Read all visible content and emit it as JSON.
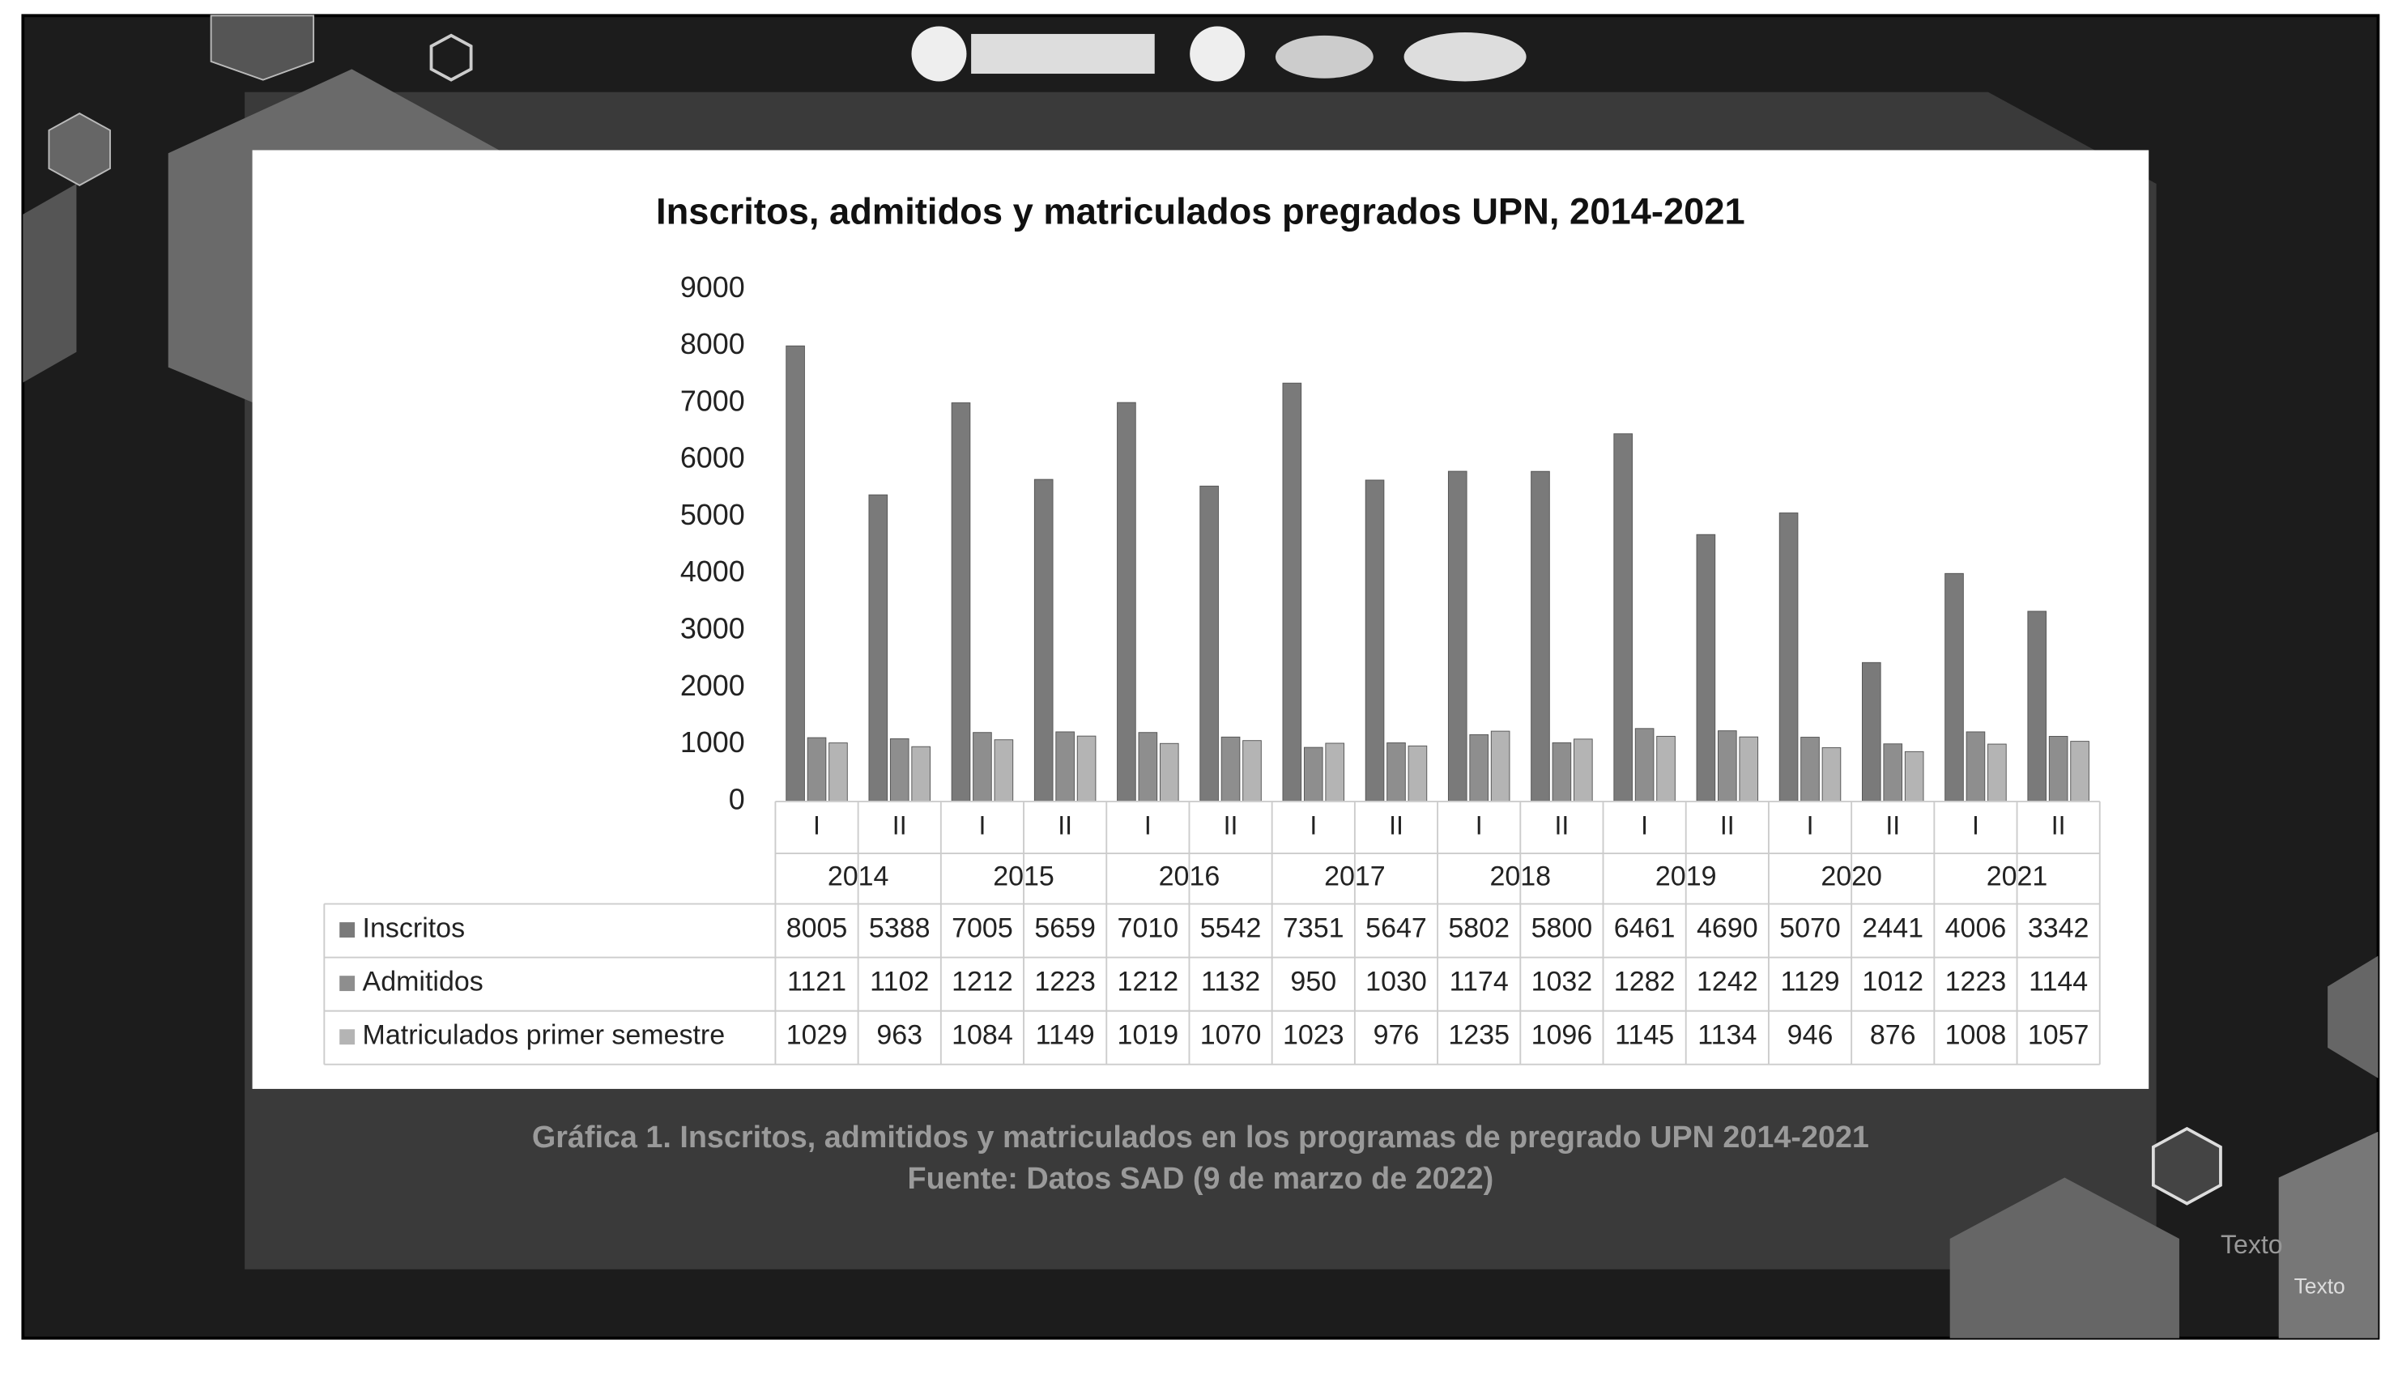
{
  "chart_data": {
    "type": "bar",
    "title": "Inscritos, admitidos y matriculados pregrados UPN, 2014-2021",
    "categories": [
      "I",
      "II",
      "I",
      "II",
      "I",
      "II",
      "I",
      "II",
      "I",
      "II",
      "I",
      "II",
      "I",
      "II",
      "I",
      "II"
    ],
    "groups": [
      "2014",
      "2015",
      "2016",
      "2017",
      "2018",
      "2019",
      "2020",
      "2021"
    ],
    "series": [
      {
        "name": "Inscritos",
        "color": "#7a7a7a",
        "values": [
          8005,
          5388,
          7005,
          5659,
          7010,
          5542,
          7351,
          5647,
          5802,
          5800,
          6461,
          4690,
          5070,
          2441,
          4006,
          3342
        ]
      },
      {
        "name": "Admitidos",
        "color": "#8e8e8e",
        "values": [
          1121,
          1102,
          1212,
          1223,
          1212,
          1132,
          950,
          1030,
          1174,
          1032,
          1282,
          1242,
          1129,
          1012,
          1223,
          1144
        ]
      },
      {
        "name": "Matriculados primer semestre",
        "color": "#b4b4b4",
        "values": [
          1029,
          963,
          1084,
          1149,
          1019,
          1070,
          1023,
          976,
          1235,
          1096,
          1145,
          1134,
          946,
          876,
          1008,
          1057
        ]
      }
    ],
    "ylim": [
      0,
      9000
    ],
    "yticks": [
      0,
      1000,
      2000,
      3000,
      4000,
      5000,
      6000,
      7000,
      8000,
      9000
    ]
  },
  "caption": [
    "Gráfica 1. Inscritos, admitidos y matriculados en los programas de pregrado UPN 2014-2021",
    "Fuente: Datos SAD (9 de marzo de 2022)"
  ],
  "decor_texts": [
    "Texto",
    "Texto"
  ]
}
